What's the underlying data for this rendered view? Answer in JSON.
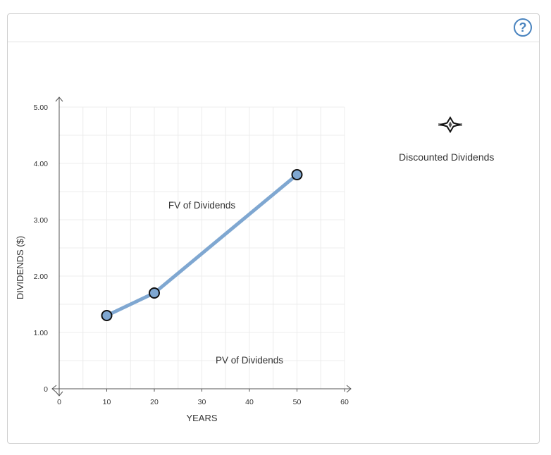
{
  "help": {
    "label": "?"
  },
  "legend": {
    "discounted_label": "Discounted Dividends"
  },
  "chart_data": {
    "type": "line",
    "xlabel": "YEARS",
    "ylabel": "DIVIDENDS ($)",
    "xlim": [
      0,
      60
    ],
    "ylim": [
      0,
      5
    ],
    "x_ticks": [
      "0",
      "10",
      "20",
      "30",
      "40",
      "50",
      "60"
    ],
    "y_ticks": [
      "0",
      "1.00",
      "2.00",
      "3.00",
      "4.00",
      "5.00"
    ],
    "grid": true,
    "series": [
      {
        "color": "#7fa7d1",
        "points": [
          {
            "x": 10,
            "y": 1.3
          },
          {
            "x": 20,
            "y": 1.7
          },
          {
            "x": 50,
            "y": 3.8
          }
        ]
      }
    ],
    "annotations": [
      {
        "text": "FV of Dividends",
        "x": 30,
        "y": 3.2
      },
      {
        "text": "PV of Dividends",
        "x": 40,
        "y": 0.45
      }
    ]
  }
}
